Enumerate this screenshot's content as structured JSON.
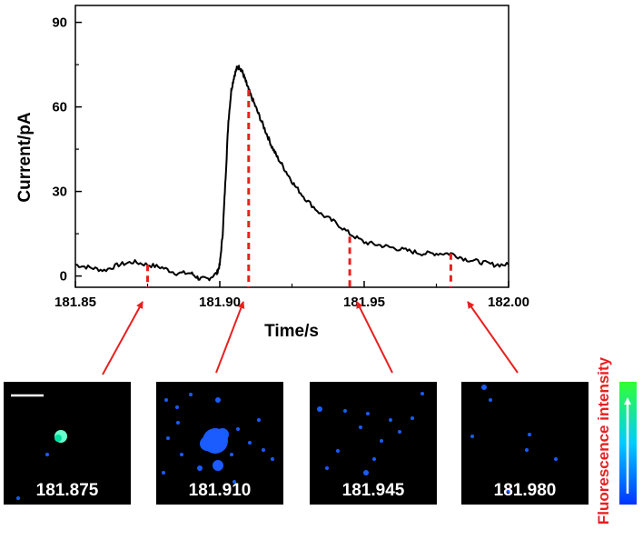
{
  "chart_data": {
    "type": "line",
    "xlabel": "Time/s",
    "ylabel": "Current/pA",
    "xlim": [
      181.85,
      182.0
    ],
    "ylim": [
      -4,
      96
    ],
    "xticks": [
      "181.85",
      "181.90",
      "181.95",
      "182.00"
    ],
    "yticks": [
      "0",
      "30",
      "60",
      "90"
    ],
    "grid": false,
    "series": [
      {
        "x": [
          181.85,
          181.855,
          181.86,
          181.865,
          181.87,
          181.875,
          181.88,
          181.885,
          181.89,
          181.893,
          181.896,
          181.899,
          181.9,
          181.901,
          181.902,
          181.903,
          181.904,
          181.905,
          181.906,
          181.907,
          181.908,
          181.909,
          181.91,
          181.912,
          181.914,
          181.916,
          181.918,
          181.92,
          181.923,
          181.926,
          181.93,
          181.935,
          181.94,
          181.945,
          181.95,
          181.955,
          181.96,
          181.965,
          181.97,
          181.975,
          181.98,
          181.985,
          181.99,
          181.995,
          182.0
        ],
        "y": [
          4,
          3,
          2,
          4,
          5,
          4,
          3,
          1,
          1,
          -1,
          -1,
          1,
          4,
          15,
          35,
          55,
          66,
          71,
          74,
          74,
          72,
          69,
          66,
          61,
          56,
          51,
          46,
          42,
          37,
          32,
          27,
          22,
          19,
          15,
          12,
          11,
          10,
          9,
          8,
          8,
          8,
          6,
          5,
          4,
          4
        ]
      }
    ],
    "markers": [
      {
        "time": 181.875,
        "y": 4
      },
      {
        "time": 181.91,
        "y": 66
      },
      {
        "time": 181.945,
        "y": 14
      },
      {
        "time": 181.98,
        "y": 8
      }
    ],
    "frames": [
      {
        "label": "181.875",
        "scale_bar": true
      },
      {
        "label": "181.910",
        "scale_bar": false
      },
      {
        "label": "181.945",
        "scale_bar": false
      },
      {
        "label": "181.980",
        "scale_bar": false
      }
    ],
    "colorbar_label": "Fluorescence intensity",
    "colors": {
      "trace": "#000000",
      "marker": "#e8201f",
      "arrow": "#e8201f",
      "frame_bg": "#000000",
      "spot": "#1a5cff",
      "spot_bright": "#66ffcc",
      "colorbar_low": "#0033ff",
      "colorbar_mid": "#00ccff",
      "colorbar_high": "#33ff33"
    }
  }
}
